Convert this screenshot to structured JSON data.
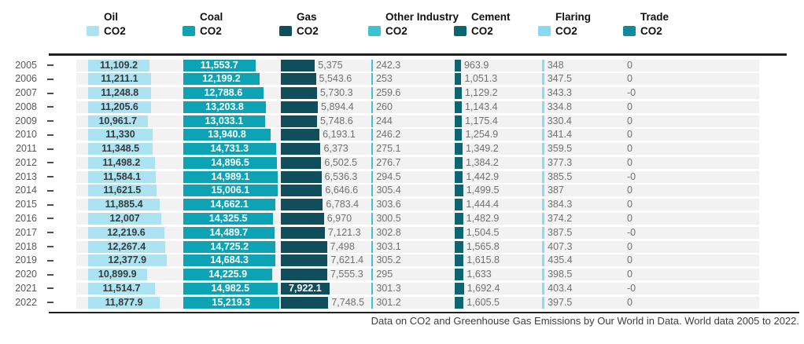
{
  "header": {
    "columns": [
      {
        "title": "Oil",
        "sub": "CO2"
      },
      {
        "title": "Coal",
        "sub": "CO2"
      },
      {
        "title": "Gas",
        "sub": "CO2"
      },
      {
        "title": "Other Industry",
        "sub": "CO2"
      },
      {
        "title": "Cement",
        "sub": "CO2"
      },
      {
        "title": "Flaring",
        "sub": "CO2"
      },
      {
        "title": "Trade",
        "sub": "CO2"
      }
    ]
  },
  "footer": {
    "caption": "Data on CO2 and Greenhouse Gas Emissions by Our World in Data. World data 2005 to 2022."
  },
  "chart_data": {
    "type": "table",
    "subtype": "bar-table",
    "title": "",
    "legend_position": "top",
    "grid": false,
    "categories": [
      "2005",
      "2006",
      "2007",
      "2008",
      "2009",
      "2010",
      "2011",
      "2012",
      "2013",
      "2014",
      "2015",
      "2016",
      "2017",
      "2018",
      "2019",
      "2020",
      "2021",
      "2022"
    ],
    "series": [
      {
        "name": "Oil CO2",
        "color": "#ace3f2",
        "values": [
          11109.2,
          11211.1,
          11248.8,
          11205.6,
          10961.7,
          11330,
          11348.5,
          11498.2,
          11584.1,
          11621.5,
          11885.4,
          12007,
          12219.6,
          12267.4,
          12377.9,
          10899.9,
          11514.7,
          11877.9
        ],
        "labels": [
          "11,109.2",
          "11,211.1",
          "11,248.8",
          "11,205.6",
          "10,961.7",
          "11,330",
          "11,348.5",
          "11,498.2",
          "11,584.1",
          "11,621.5",
          "11,885.4",
          "12,007",
          "12,219.6",
          "12,267.4",
          "12,377.9",
          "10,899.9",
          "11,514.7",
          "11,877.9"
        ]
      },
      {
        "name": "Coal CO2",
        "color": "#0da3b5",
        "values": [
          11553.7,
          12199.2,
          12788.6,
          13203.8,
          13033.1,
          13940.8,
          14731.3,
          14896.5,
          14989.1,
          15006.1,
          14662.1,
          14325.5,
          14489.7,
          14725.2,
          14684.3,
          14225.9,
          14982.5,
          15219.3
        ],
        "labels": [
          "11,553.7",
          "12,199.2",
          "12,788.6",
          "13,203.8",
          "13,033.1",
          "13,940.8",
          "14,731.3",
          "14,896.5",
          "14,989.1",
          "15,006.1",
          "14,662.1",
          "14,325.5",
          "14,489.7",
          "14,725.2",
          "14,684.3",
          "14,225.9",
          "14,982.5",
          "15,219.3"
        ]
      },
      {
        "name": "Gas CO2",
        "color": "#114e5c",
        "values": [
          5375,
          5543.6,
          5730.3,
          5894.4,
          5748.6,
          6193.1,
          6373,
          6502.5,
          6536.3,
          6646.6,
          6783.4,
          6970,
          7121.3,
          7498,
          7621.4,
          7555.3,
          7922.1,
          7748.5
        ],
        "labels": [
          "5,375",
          "5,543.6",
          "5,730.3",
          "5,894.4",
          "5,748.6",
          "6,193.1",
          "6,373",
          "6,502.5",
          "6,536.3",
          "6,646.6",
          "6,783.4",
          "6,970",
          "7,121.3",
          "7,498",
          "7,621.4",
          "7,555.3",
          "7,922.1",
          "7,748.5"
        ]
      },
      {
        "name": "Other Industry CO2",
        "color": "#3ec1d3",
        "values": [
          242.3,
          253,
          259.6,
          260,
          244,
          246.2,
          275.1,
          276.7,
          294.5,
          305.4,
          303.6,
          300.5,
          302.8,
          303.1,
          305.2,
          295,
          301.3,
          301.2
        ],
        "labels": [
          "242.3",
          "253",
          "259.6",
          "260",
          "244",
          "246.2",
          "275.1",
          "276.7",
          "294.5",
          "305.4",
          "303.6",
          "300.5",
          "302.8",
          "303.1",
          "305.2",
          "295",
          "301.3",
          "301.2"
        ]
      },
      {
        "name": "Cement CO2",
        "color": "#0d6472",
        "values": [
          963.9,
          1051.3,
          1129.2,
          1143.4,
          1175.4,
          1254.9,
          1349.2,
          1384.2,
          1442.9,
          1499.5,
          1444.4,
          1482.9,
          1504.5,
          1565.8,
          1615.8,
          1633,
          1692.4,
          1605.5
        ],
        "labels": [
          "963.9",
          "1,051.3",
          "1,129.2",
          "1,143.4",
          "1,175.4",
          "1,254.9",
          "1,349.2",
          "1,384.2",
          "1,442.9",
          "1,499.5",
          "1,444.4",
          "1,482.9",
          "1,504.5",
          "1,565.8",
          "1,615.8",
          "1,633",
          "1,692.4",
          "1,605.5"
        ]
      },
      {
        "name": "Flaring CO2",
        "color": "#87daf2",
        "values": [
          348,
          347.5,
          343.3,
          334.8,
          330.4,
          341.4,
          359.5,
          377.3,
          385.5,
          387,
          384.3,
          374.2,
          387.5,
          407.3,
          435.4,
          398.5,
          403.4,
          397.5
        ],
        "labels": [
          "348",
          "347.5",
          "343.3",
          "334.8",
          "330.4",
          "341.4",
          "359.5",
          "377.3",
          "385.5",
          "387",
          "384.3",
          "374.2",
          "387.5",
          "407.3",
          "435.4",
          "398.5",
          "403.4",
          "397.5"
        ]
      },
      {
        "name": "Trade CO2",
        "color": "#0e8c9d",
        "values": [
          0,
          0,
          0,
          0,
          0,
          0,
          0,
          0,
          0,
          0,
          0,
          0,
          0,
          0,
          0,
          0,
          0,
          0
        ],
        "labels": [
          "0",
          "0",
          "-0",
          "0",
          "0",
          "0",
          "0",
          "0",
          "-0",
          "0",
          "0",
          "0",
          "-0",
          "0",
          "0",
          "0",
          "-0",
          "0"
        ]
      }
    ]
  }
}
